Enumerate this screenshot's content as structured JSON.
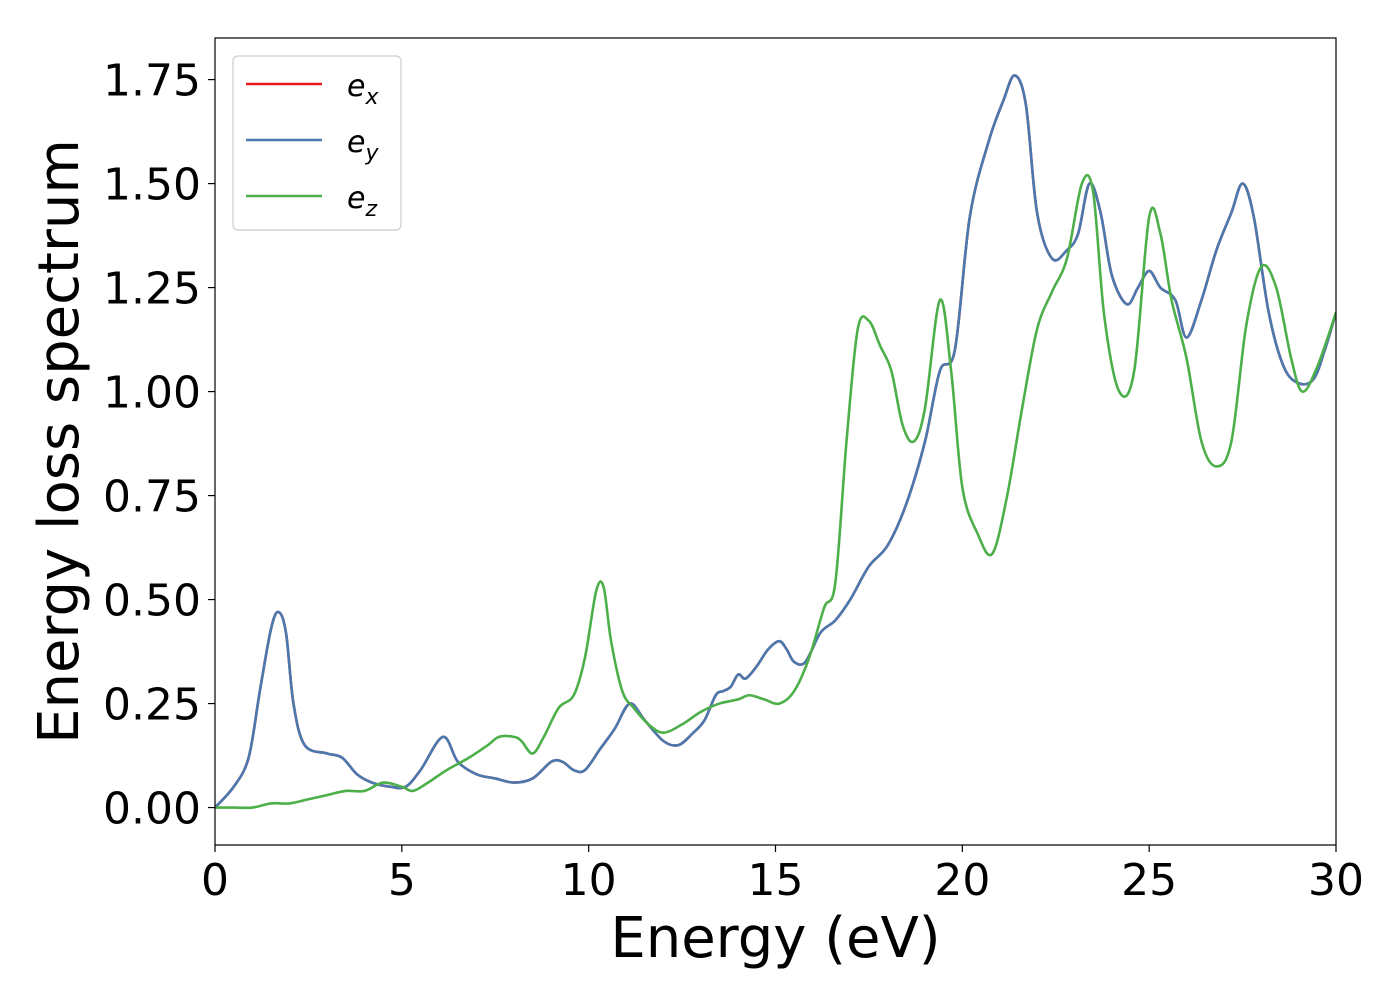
{
  "chart_data": {
    "type": "line",
    "xlabel": "Energy (eV)",
    "ylabel": "Energy loss spectrum",
    "xlim": [
      0,
      30
    ],
    "ylim": [
      -0.09,
      1.85
    ],
    "xticks": [
      0,
      5,
      10,
      15,
      20,
      25,
      30
    ],
    "xtick_labels": [
      "0",
      "5",
      "10",
      "15",
      "20",
      "25",
      "30"
    ],
    "yticks": [
      0,
      0.25,
      0.5,
      0.75,
      1.0,
      1.25,
      1.5,
      1.75
    ],
    "ytick_labels": [
      "0.00",
      "0.25",
      "0.50",
      "0.75",
      "1.00",
      "1.25",
      "1.50",
      "1.75"
    ],
    "grid": false,
    "legend_position": "top-left",
    "series": [
      {
        "name": "e",
        "subscript": "x",
        "color": "#e41a1c",
        "x": [
          0,
          0.5,
          0.9,
          1.2,
          1.5,
          1.7,
          1.9,
          2.1,
          2.4,
          3.0,
          3.4,
          3.8,
          4.2,
          4.7,
          5.1,
          5.5,
          6.1,
          6.5,
          7.0,
          7.5,
          8.0,
          8.5,
          9.0,
          9.3,
          9.6,
          9.9,
          10.3,
          10.7,
          11.1,
          11.5,
          12.0,
          12.4,
          12.8,
          13.1,
          13.4,
          13.6,
          13.8,
          14.0,
          14.2,
          14.5,
          14.8,
          15.1,
          15.3,
          15.5,
          15.8,
          16.2,
          16.6,
          17.0,
          17.5,
          18.0,
          18.5,
          19.0,
          19.4,
          19.8,
          20.2,
          20.7,
          21.1,
          21.4,
          21.7,
          22.0,
          22.4,
          22.8,
          23.1,
          23.4,
          23.7,
          24.0,
          24.4,
          24.7,
          25.0,
          25.3,
          25.7,
          26.0,
          26.4,
          26.8,
          27.2,
          27.5,
          27.8,
          28.2,
          28.6,
          29.0,
          29.4,
          29.7,
          30.0
        ],
        "y": [
          0.0,
          0.05,
          0.12,
          0.28,
          0.43,
          0.47,
          0.42,
          0.25,
          0.15,
          0.13,
          0.12,
          0.08,
          0.06,
          0.05,
          0.05,
          0.09,
          0.17,
          0.11,
          0.08,
          0.07,
          0.06,
          0.07,
          0.11,
          0.11,
          0.09,
          0.09,
          0.14,
          0.19,
          0.25,
          0.21,
          0.16,
          0.15,
          0.18,
          0.21,
          0.27,
          0.28,
          0.29,
          0.32,
          0.31,
          0.34,
          0.38,
          0.4,
          0.38,
          0.35,
          0.35,
          0.42,
          0.45,
          0.5,
          0.58,
          0.63,
          0.73,
          0.88,
          1.05,
          1.1,
          1.42,
          1.6,
          1.7,
          1.76,
          1.69,
          1.43,
          1.32,
          1.34,
          1.38,
          1.5,
          1.43,
          1.28,
          1.21,
          1.25,
          1.29,
          1.25,
          1.22,
          1.13,
          1.22,
          1.34,
          1.43,
          1.5,
          1.42,
          1.19,
          1.06,
          1.02,
          1.03,
          1.1,
          1.19
        ]
      },
      {
        "name": "e",
        "subscript": "y",
        "color": "#4a79b0",
        "x": [
          0,
          0.5,
          0.9,
          1.2,
          1.5,
          1.7,
          1.9,
          2.1,
          2.4,
          3.0,
          3.4,
          3.8,
          4.2,
          4.7,
          5.1,
          5.5,
          6.1,
          6.5,
          7.0,
          7.5,
          8.0,
          8.5,
          9.0,
          9.3,
          9.6,
          9.9,
          10.3,
          10.7,
          11.1,
          11.5,
          12.0,
          12.4,
          12.8,
          13.1,
          13.4,
          13.6,
          13.8,
          14.0,
          14.2,
          14.5,
          14.8,
          15.1,
          15.3,
          15.5,
          15.8,
          16.2,
          16.6,
          17.0,
          17.5,
          18.0,
          18.5,
          19.0,
          19.4,
          19.8,
          20.2,
          20.7,
          21.1,
          21.4,
          21.7,
          22.0,
          22.4,
          22.8,
          23.1,
          23.4,
          23.7,
          24.0,
          24.4,
          24.7,
          25.0,
          25.3,
          25.7,
          26.0,
          26.4,
          26.8,
          27.2,
          27.5,
          27.8,
          28.2,
          28.6,
          29.0,
          29.4,
          29.7,
          30.0
        ],
        "y": [
          0.0,
          0.05,
          0.12,
          0.28,
          0.43,
          0.47,
          0.42,
          0.25,
          0.15,
          0.13,
          0.12,
          0.08,
          0.06,
          0.05,
          0.05,
          0.09,
          0.17,
          0.11,
          0.08,
          0.07,
          0.06,
          0.07,
          0.11,
          0.11,
          0.09,
          0.09,
          0.14,
          0.19,
          0.25,
          0.21,
          0.16,
          0.15,
          0.18,
          0.21,
          0.27,
          0.28,
          0.29,
          0.32,
          0.31,
          0.34,
          0.38,
          0.4,
          0.38,
          0.35,
          0.35,
          0.42,
          0.45,
          0.5,
          0.58,
          0.63,
          0.73,
          0.88,
          1.05,
          1.1,
          1.42,
          1.6,
          1.7,
          1.76,
          1.69,
          1.43,
          1.32,
          1.34,
          1.38,
          1.5,
          1.43,
          1.28,
          1.21,
          1.25,
          1.29,
          1.25,
          1.22,
          1.13,
          1.22,
          1.34,
          1.43,
          1.5,
          1.42,
          1.19,
          1.06,
          1.02,
          1.03,
          1.1,
          1.19
        ]
      },
      {
        "name": "e",
        "subscript": "z",
        "color": "#4daf4a",
        "x": [
          0,
          0.5,
          1.0,
          1.5,
          2.0,
          2.5,
          3.0,
          3.5,
          4.0,
          4.5,
          5.0,
          5.3,
          5.7,
          6.2,
          6.8,
          7.3,
          7.6,
          8.0,
          8.2,
          8.5,
          8.8,
          9.2,
          9.6,
          9.9,
          10.2,
          10.4,
          10.6,
          10.9,
          11.2,
          11.6,
          12.0,
          12.5,
          13.0,
          13.5,
          14.0,
          14.3,
          14.7,
          15.1,
          15.5,
          15.9,
          16.3,
          16.6,
          16.9,
          17.2,
          17.5,
          17.8,
          18.1,
          18.4,
          18.7,
          19.0,
          19.4,
          19.7,
          20.0,
          20.4,
          20.8,
          21.2,
          21.6,
          22.0,
          22.4,
          22.8,
          23.2,
          23.5,
          23.8,
          24.2,
          24.6,
          25.0,
          25.3,
          25.6,
          26.0,
          26.4,
          26.8,
          27.2,
          27.6,
          28.0,
          28.4,
          28.8,
          29.1,
          29.5,
          30.0
        ],
        "y": [
          0.0,
          0.0,
          0.0,
          0.01,
          0.01,
          0.02,
          0.03,
          0.04,
          0.04,
          0.06,
          0.05,
          0.04,
          0.06,
          0.09,
          0.12,
          0.15,
          0.17,
          0.17,
          0.16,
          0.13,
          0.17,
          0.24,
          0.27,
          0.36,
          0.52,
          0.53,
          0.4,
          0.28,
          0.24,
          0.2,
          0.18,
          0.2,
          0.23,
          0.25,
          0.26,
          0.27,
          0.26,
          0.25,
          0.28,
          0.36,
          0.48,
          0.54,
          0.88,
          1.15,
          1.17,
          1.11,
          1.05,
          0.92,
          0.88,
          0.96,
          1.22,
          1.05,
          0.77,
          0.66,
          0.61,
          0.75,
          0.96,
          1.15,
          1.24,
          1.32,
          1.5,
          1.48,
          1.18,
          1.0,
          1.05,
          1.42,
          1.38,
          1.22,
          1.08,
          0.88,
          0.82,
          0.88,
          1.16,
          1.3,
          1.25,
          1.08,
          1.0,
          1.06,
          1.19
        ]
      }
    ]
  }
}
